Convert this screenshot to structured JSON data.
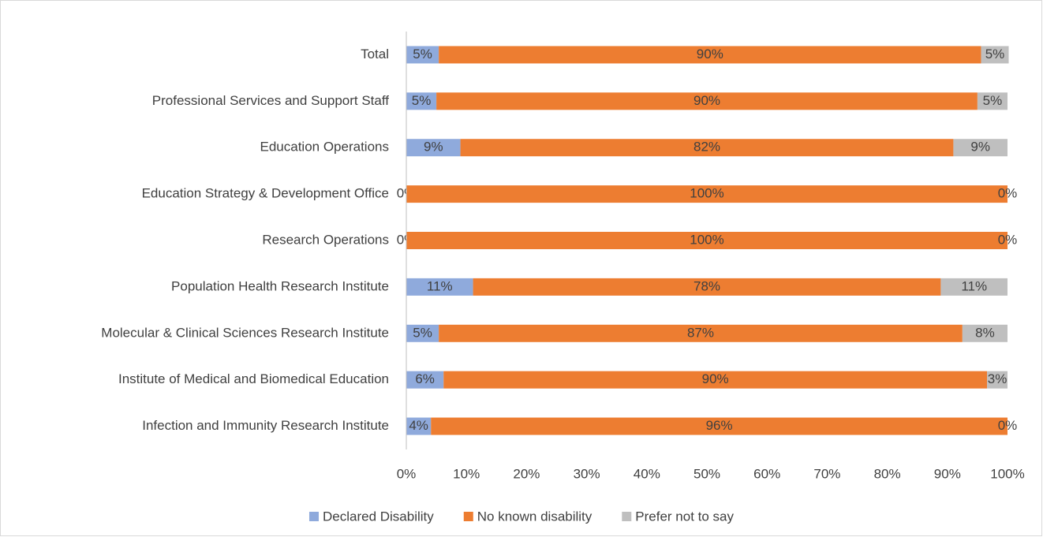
{
  "chart_data": {
    "type": "stacked-bar-horizontal",
    "categories": [
      "Total",
      "Professional Services and Support Staff",
      "Education Operations",
      "Education Strategy & Development Office",
      "Research Operations",
      "Population Health Research Institute",
      "Molecular & Clinical Sciences Research Institute",
      "Institute of Medical and Biomedical Education",
      "Infection and Immunity Research Institute"
    ],
    "series": [
      {
        "name": "Declared Disability",
        "color": "#8faadc",
        "values": [
          5.4,
          5,
          9,
          0,
          0,
          11.1,
          5.4,
          6.2,
          4.1
        ],
        "value_labels": [
          "5%",
          "5%",
          "9%",
          "0%",
          "0%",
          "11%",
          "5%",
          "6%",
          "4%"
        ]
      },
      {
        "name": "No known disability",
        "color": "#ed7d31",
        "values": [
          90.2,
          90,
          82,
          100,
          100,
          77.8,
          87.1,
          90.4,
          95.9
        ],
        "value_labels": [
          "90%",
          "90%",
          "82%",
          "100%",
          "100%",
          "78%",
          "87%",
          "90%",
          "96%"
        ]
      },
      {
        "name": "Prefer not to say",
        "color": "#bfbfbf",
        "values": [
          4.6,
          5,
          9,
          0,
          0,
          11.1,
          7.5,
          3.4,
          0
        ],
        "value_labels": [
          "5%",
          "5%",
          "9%",
          "0%",
          "0%",
          "11%",
          "8%",
          "3%",
          "0%"
        ]
      }
    ],
    "xlim": [
      0,
      100
    ],
    "xticks": [
      {
        "value": 0,
        "label": "0%"
      },
      {
        "value": 10,
        "label": "10%"
      },
      {
        "value": 20,
        "label": "20%"
      },
      {
        "value": 30,
        "label": "30%"
      },
      {
        "value": 40,
        "label": "40%"
      },
      {
        "value": 50,
        "label": "50%"
      },
      {
        "value": 60,
        "label": "60%"
      },
      {
        "value": 70,
        "label": "70%"
      },
      {
        "value": 80,
        "label": "80%"
      },
      {
        "value": 90,
        "label": "90%"
      },
      {
        "value": 100,
        "label": "100%"
      }
    ],
    "grid": false,
    "legend": "bottom"
  }
}
